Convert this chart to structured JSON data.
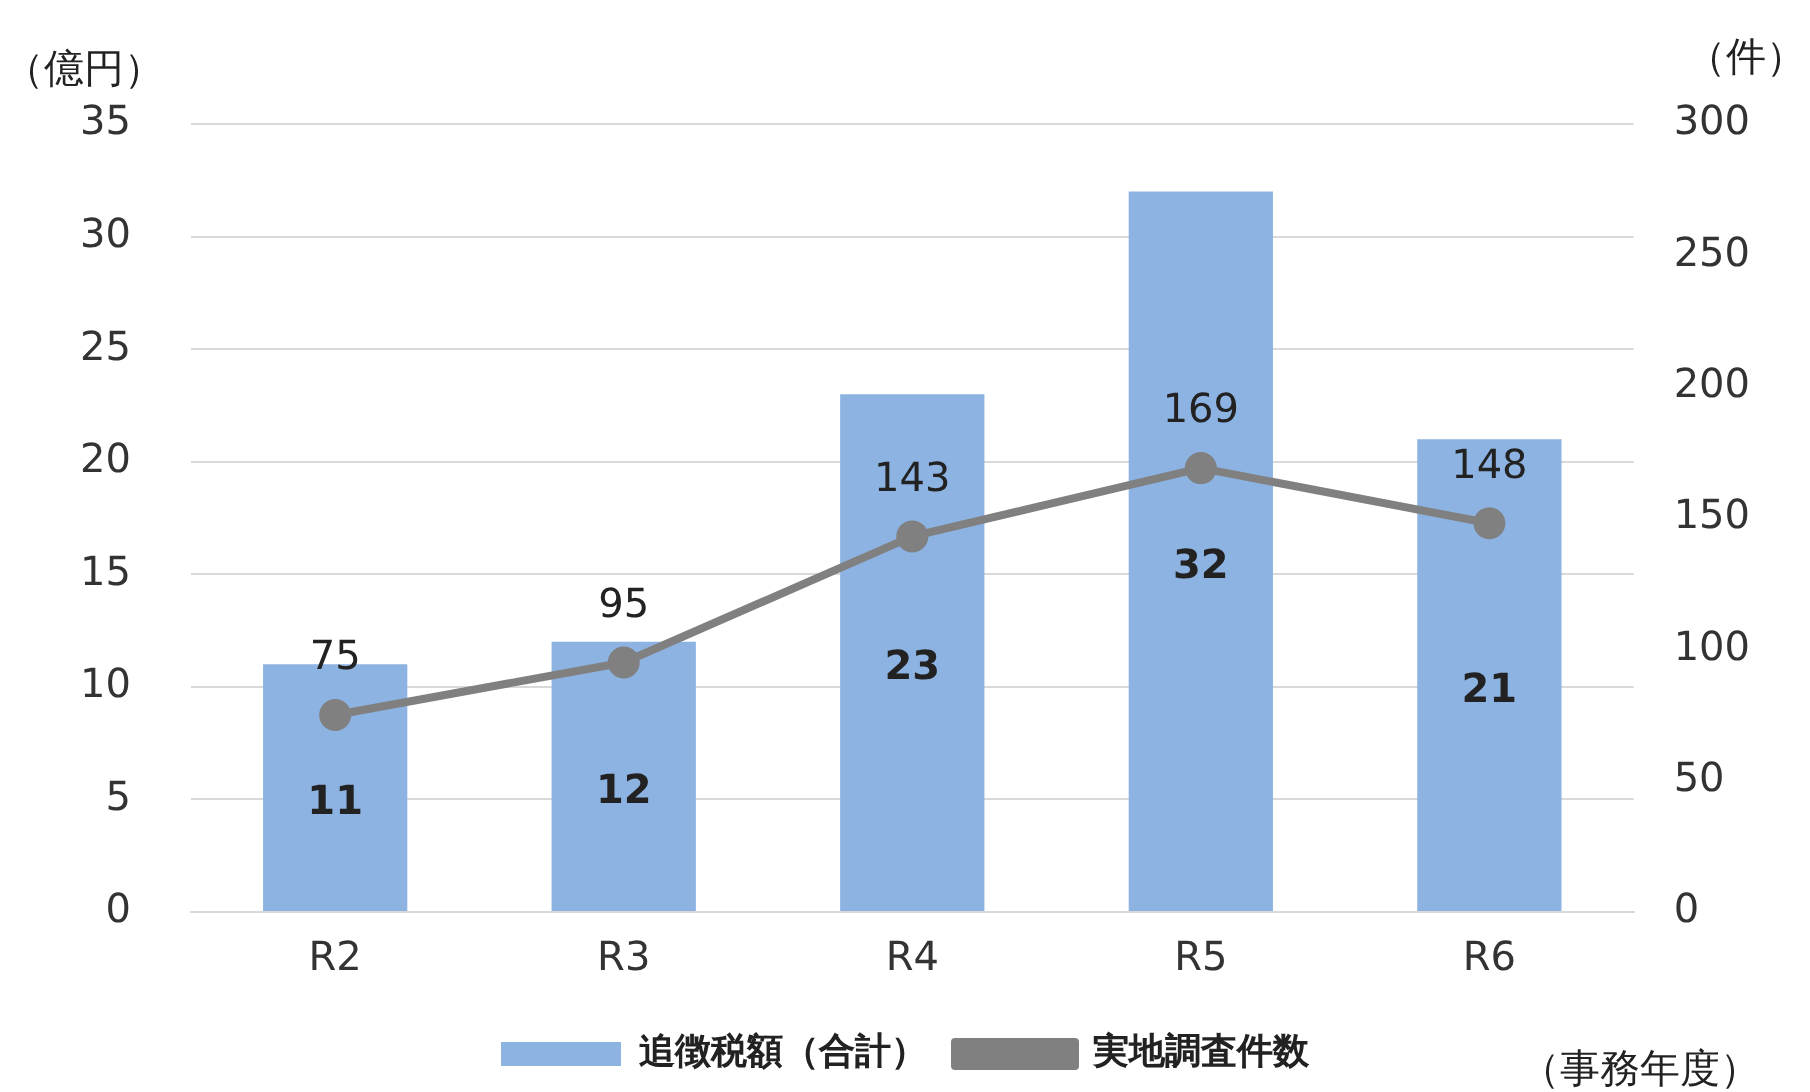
{
  "chart_data": {
    "type": "bar",
    "categories": [
      "R2",
      "R3",
      "R4",
      "R5",
      "R6"
    ],
    "series": [
      {
        "name": "追徴税額（合計）",
        "color": "#8db3e2",
        "values": [
          11,
          12,
          23,
          32,
          21
        ]
      },
      {
        "name": "実地調査件数",
        "type": "line",
        "axis": "y2",
        "color": "#808080",
        "values": [
          75,
          95,
          143,
          169,
          148
        ],
        "marker": "circle",
        "line_style": "solid"
      }
    ],
    "ylabel": "（億円）",
    "y2label": "（件）",
    "ylim": [
      0,
      35
    ],
    "yticks": [
      0,
      5,
      10,
      15,
      20,
      25,
      30,
      35
    ],
    "y2lim": [
      0,
      300
    ],
    "y2ticks": [
      0,
      50,
      100,
      150,
      200,
      250,
      300
    ],
    "grid": "y",
    "legend": "bottom",
    "data_labels": true,
    "annotations": [
      "（事務年度）"
    ]
  }
}
